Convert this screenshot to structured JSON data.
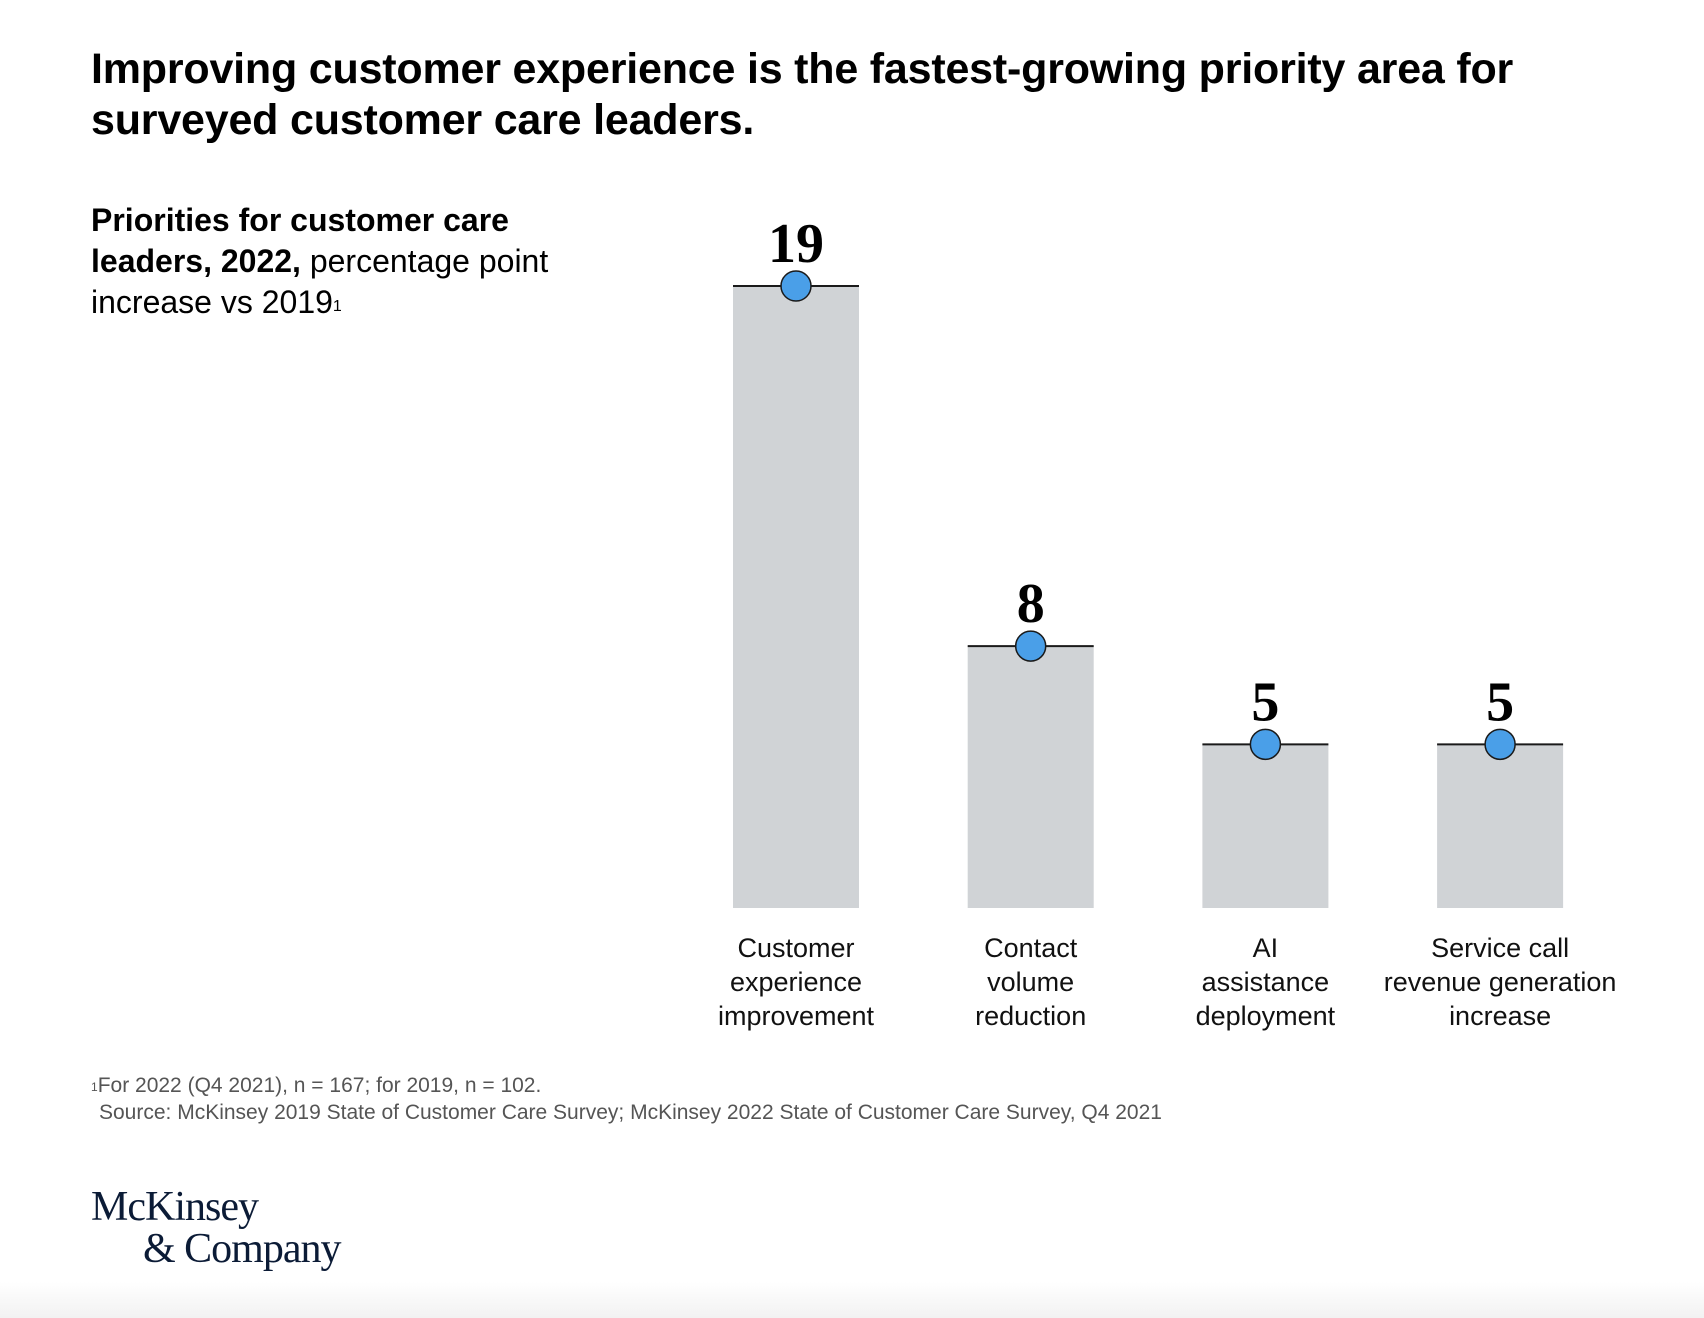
{
  "headline": "Improving customer experience is the fastest-growing priority area for surveyed customer care leaders.",
  "subtitle": {
    "bold": "Priorities for customer care leaders, 2022,",
    "regular": " percentage point increase vs 2019",
    "footnote_marker": "1"
  },
  "chart_data": {
    "type": "bar",
    "title": "Priorities for customer care leaders, 2022, percentage point increase vs 2019",
    "categories": [
      "Customer experience improvement",
      "Contact volume reduction",
      "AI assistance deployment",
      "Service call revenue generation increase"
    ],
    "category_lines": [
      [
        "Customer",
        "experience",
        "improvement"
      ],
      [
        "Contact",
        "volume",
        "reduction"
      ],
      [
        "AI",
        "assistance",
        "deployment"
      ],
      [
        "Service call",
        "revenue generation",
        "increase"
      ]
    ],
    "values": [
      19,
      8,
      5,
      5
    ],
    "data_labels": [
      "19",
      "8",
      "5",
      "5"
    ],
    "ylim": [
      0,
      19
    ],
    "grid": false,
    "colors": {
      "bar": "#d0d3d6",
      "marker": "#4a9fe8",
      "marker_stroke": "#1a1a1a",
      "cap_line": "#1a1a1a"
    }
  },
  "footnote": {
    "marker": "1",
    "text": "For 2022 (Q4 2021), n = 167; for 2019, n = 102."
  },
  "source": "Source: McKinsey 2019 State of Customer Care Survey; McKinsey 2022 State of Customer Care Survey, Q4 2021",
  "logo": {
    "line1": "McKinsey",
    "line2": "& Company"
  }
}
